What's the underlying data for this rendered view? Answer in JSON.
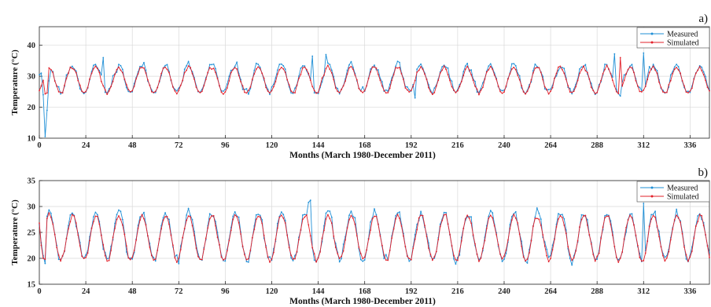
{
  "chart_data": [
    {
      "type": "line",
      "panel_label": "a)",
      "xlabel": "Months (March 1980-December 2011)",
      "ylabel": "Temperature (°C)",
      "xlim": [
        0,
        346
      ],
      "ylim": [
        10,
        46
      ],
      "xticks": [
        0,
        24,
        48,
        72,
        96,
        120,
        144,
        168,
        192,
        216,
        240,
        264,
        288,
        312,
        336
      ],
      "yticks": [
        10,
        20,
        30,
        40
      ],
      "grid": true,
      "legend": "top-right",
      "series": [
        {
          "name": "Measured",
          "color": "#1f8fd6",
          "mean": 29.2,
          "amp": 4.5,
          "phase": 2.0,
          "noise": 1.3,
          "seed": 11,
          "overrides": [
            [
              0,
              30.5
            ],
            [
              1,
              31.0
            ],
            [
              2,
              24.0
            ],
            [
              3,
              10.5
            ],
            [
              4,
              19.0
            ],
            [
              5,
              28.5
            ],
            [
              6,
              32.0
            ],
            [
              33,
              36.0
            ],
            [
              141,
              36.5
            ],
            [
              148,
              37.0
            ],
            [
              194,
              23.0
            ],
            [
              297,
              37.2
            ],
            [
              312,
              37.5
            ]
          ]
        },
        {
          "name": "Simulated",
          "color": "#e2202a",
          "mean": 28.8,
          "amp": 4.2,
          "phase": 2.0,
          "noise": 0.55,
          "seed": 29,
          "overrides": [
            [
              3,
              24.3
            ],
            [
              4,
              24.6
            ],
            [
              300,
              36.0
            ]
          ]
        }
      ]
    },
    {
      "type": "line",
      "panel_label": "b)",
      "xlabel": "Months (March 1980-December 2011)",
      "ylabel": "Temperature (°C)",
      "xlim": [
        0,
        346
      ],
      "ylim": [
        15,
        35
      ],
      "xticks": [
        0,
        24,
        48,
        72,
        96,
        120,
        144,
        168,
        192,
        216,
        240,
        264,
        288,
        312,
        336
      ],
      "yticks": [
        15,
        20,
        25,
        30,
        35
      ],
      "grid": true,
      "legend": "top-right",
      "series": [
        {
          "name": "Measured",
          "color": "#1f8fd6",
          "mean": 24.3,
          "amp": 4.6,
          "phase": 2.2,
          "noise": 0.95,
          "seed": 7,
          "overrides": [
            [
              0,
              26.5
            ],
            [
              1,
              23.0
            ],
            [
              2,
              20.5
            ],
            [
              3,
              19.0
            ],
            [
              139,
              30.8
            ],
            [
              140,
              31.2
            ],
            [
              312,
              30.6
            ]
          ]
        },
        {
          "name": "Simulated",
          "color": "#e2202a",
          "mean": 24.0,
          "amp": 4.3,
          "phase": 2.2,
          "noise": 0.45,
          "seed": 41,
          "overrides": [
            [
              0,
              26.8
            ],
            [
              1,
              22.5
            ],
            [
              2,
              20.0
            ],
            [
              3,
              19.8
            ]
          ]
        }
      ]
    }
  ]
}
